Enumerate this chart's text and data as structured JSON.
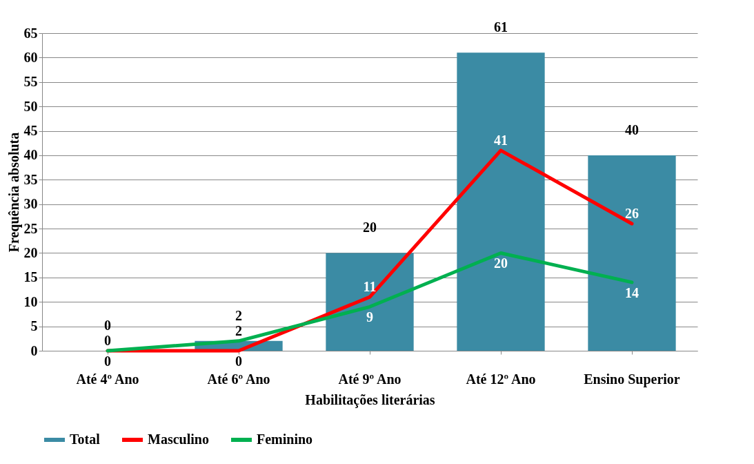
{
  "chart_data": {
    "type": "bar",
    "xlabel": "Habilitações literárias",
    "ylabel": "Frequência absoluta",
    "categories": [
      "Até 4º Ano",
      "Até 6º Ano",
      "Até 9º Ano",
      "Até 12º Ano",
      "Ensino Superior"
    ],
    "series": [
      {
        "name": "Total",
        "color": "#3b8ba4",
        "values": [
          0,
          2,
          20,
          61,
          40
        ]
      },
      {
        "name": "Masculino",
        "type": "line",
        "color": "#ff0000",
        "values": [
          0,
          0,
          11,
          41,
          26
        ]
      },
      {
        "name": "Feminino",
        "type": "line",
        "color": "#00b050",
        "values": [
          0,
          2,
          9,
          20,
          14
        ]
      }
    ],
    "ylim": [
      0,
      65
    ],
    "yticks": [
      0,
      5,
      10,
      15,
      20,
      25,
      30,
      35,
      40,
      45,
      50,
      55,
      60,
      65
    ],
    "grid": "y",
    "legend": "bottom",
    "data_labels": true
  }
}
